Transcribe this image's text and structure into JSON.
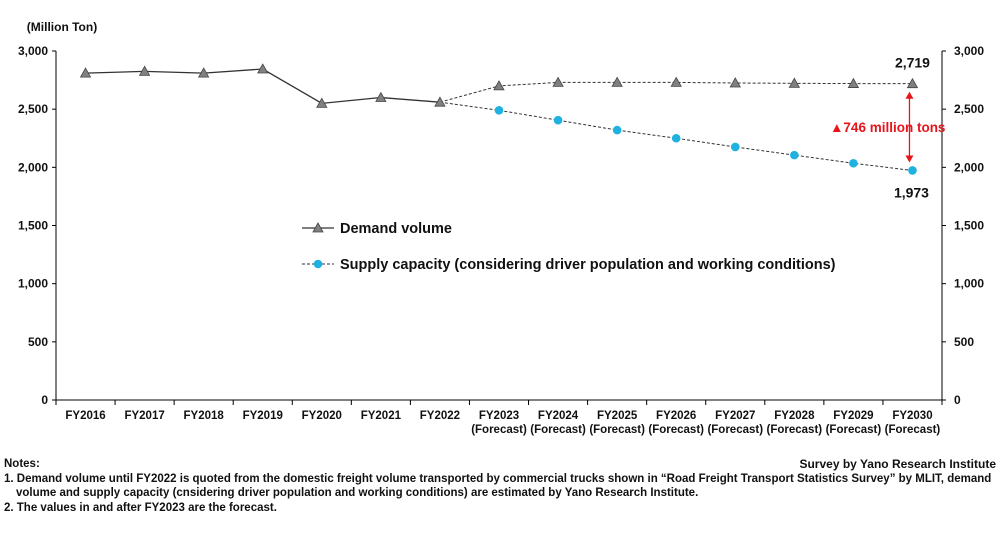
{
  "chart_data": {
    "type": "line",
    "unit_label": "(Million Ton)",
    "categories": [
      [
        "FY2016"
      ],
      [
        "FY2017"
      ],
      [
        "FY2018"
      ],
      [
        "FY2019"
      ],
      [
        "FY2020"
      ],
      [
        "FY2021"
      ],
      [
        "FY2022"
      ],
      [
        "FY2023",
        "(Forecast)"
      ],
      [
        "FY2024",
        "(Forecast)"
      ],
      [
        "FY2025",
        "(Forecast)"
      ],
      [
        "FY2026",
        "(Forecast)"
      ],
      [
        "FY2027",
        "(Forecast)"
      ],
      [
        "FY2028",
        "(Forecast)"
      ],
      [
        "FY2029",
        "(Forecast)"
      ],
      [
        "FY2030",
        "(Forecast)"
      ]
    ],
    "ylim": [
      0,
      3000
    ],
    "yticks": [
      0,
      500,
      1000,
      1500,
      2000,
      2500,
      3000
    ],
    "ytick_labels": [
      "0",
      "500",
      "1,000",
      "1,500",
      "2,000",
      "2,500",
      "3,000"
    ],
    "grid": false,
    "series": [
      {
        "name": "Demand volume",
        "marker": "triangle",
        "color": "#808080",
        "values": [
          2810,
          2825,
          2810,
          2845,
          2550,
          2600,
          2560,
          2700,
          2730,
          2730,
          2730,
          2725,
          2722,
          2720,
          2719
        ]
      },
      {
        "name": "Supply capacity (considering driver population and working conditions)",
        "marker": "circle",
        "color": "#1FB2E0",
        "start_index": 6,
        "values": [
          null,
          null,
          null,
          null,
          null,
          null,
          2560,
          2490,
          2405,
          2320,
          2250,
          2175,
          2105,
          2035,
          1973
        ]
      }
    ],
    "legend_placement": "center-left",
    "annotations": {
      "end_demand_label": "2,719",
      "end_supply_label": "1,973",
      "gap_label": "▲746 million tons",
      "gap_color": "#E8141A"
    }
  },
  "notes": {
    "title": "Notes:",
    "items": [
      "1. Demand volume until FY2022 is quoted from the domestic freight volume transported by commercial trucks shown in “Road Freight Transport Statistics Survey” by MLIT, demand volume and supply capacity (cnsidering driver population and working conditions) are estimated by Yano Research Institute.",
      "2. The values in and after FY2023 are the forecast."
    ]
  },
  "source": "Survey by Yano Research Institute"
}
